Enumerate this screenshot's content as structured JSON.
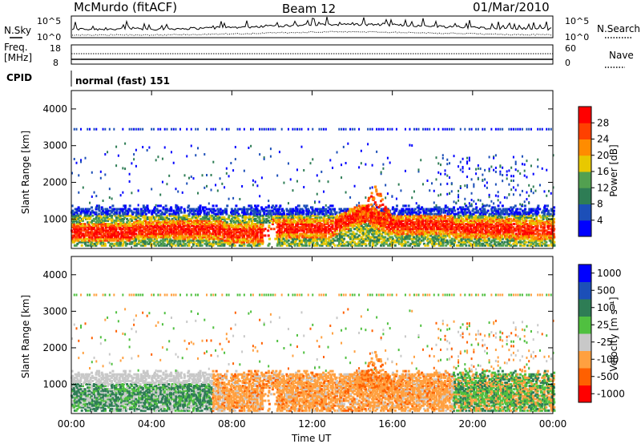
{
  "header": {
    "station": "McMurdo (fitACF)",
    "beam": "Beam 12",
    "date": "01/Mar/2010"
  },
  "strip": {
    "nsky_label": "N.Sky",
    "nsearch_label": "N.Search",
    "noise_ticks_left": [
      "10^5",
      "10^0"
    ],
    "noise_ticks_right": [
      "10^5",
      "10^0"
    ],
    "freq_label_1": "Freq.",
    "freq_label_2": "[MHz]",
    "freq_ticks": [
      "18",
      "8"
    ],
    "nave_label": "Nave",
    "nave_ticks": [
      "60",
      "0"
    ],
    "cpid_label": "CPID",
    "cpid_text": "normal (fast) 151"
  },
  "colors": {
    "power": [
      "#0000ff",
      "#1c4fb8",
      "#2e7d55",
      "#52a050",
      "#e8c800",
      "#ff8c00",
      "#ff4000",
      "#ff0000"
    ],
    "velocity": [
      "#ff0000",
      "#ff6000",
      "#ffa040",
      "#c8c8c8",
      "#50c040",
      "#2e7d55",
      "#1c4fb8",
      "#0000ff"
    ]
  },
  "chart_data": [
    {
      "type": "heatmap",
      "name": "power",
      "xlabel": "",
      "ylabel": "Slant Range [km]",
      "x_ticks": [
        "00:00",
        "04:00",
        "08:00",
        "12:00",
        "16:00",
        "20:00",
        "00:00"
      ],
      "y_ticks": [
        "1000",
        "2000",
        "3000",
        "4000"
      ],
      "ylim": [
        200,
        4500
      ],
      "colorbar_label": "Power [dB]",
      "colorbar_ticks": [
        "4",
        "8",
        "12",
        "16",
        "20",
        "24",
        "28"
      ],
      "colorbar_range": [
        0,
        32
      ]
    },
    {
      "type": "heatmap",
      "name": "velocity",
      "xlabel": "Time UT",
      "ylabel": "Slant Range [km]",
      "x_ticks": [
        "00:00",
        "04:00",
        "08:00",
        "12:00",
        "16:00",
        "20:00",
        "00:00"
      ],
      "y_ticks": [
        "1000",
        "2000",
        "3000",
        "4000"
      ],
      "ylim": [
        200,
        4500
      ],
      "colorbar_label": "Velocity [m s⁻¹]",
      "colorbar_ticks": [
        "1000",
        "500",
        "100",
        "25",
        "-25",
        "-100",
        "-500",
        "-1000"
      ]
    }
  ]
}
